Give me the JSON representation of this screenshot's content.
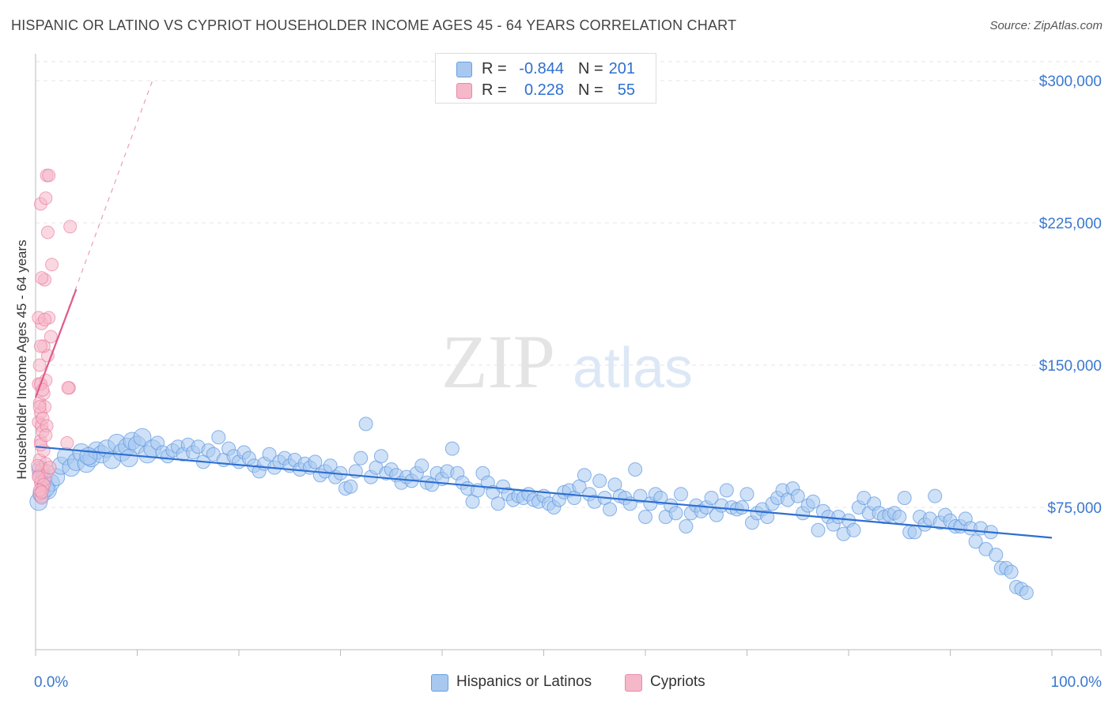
{
  "header": {
    "title": "HISPANIC OR LATINO VS CYPRIOT HOUSEHOLDER INCOME AGES 45 - 64 YEARS CORRELATION CHART",
    "source": "Source: ZipAtlas.com"
  },
  "watermark": {
    "zip": "ZIP",
    "atlas": "atlas"
  },
  "legend": {
    "rows": [
      {
        "r_label": "R =",
        "r_value": "-0.844",
        "n_label": "N =",
        "n_value": "201",
        "color": "#a8c8f0"
      },
      {
        "r_label": "R =",
        "r_value": "0.228",
        "n_label": "N =",
        "n_value": "55",
        "color": "#f5b8c8"
      }
    ]
  },
  "bottom_legend": {
    "series1": "Hispanics or Latinos",
    "series2": "Cypriots"
  },
  "chart_data": {
    "type": "scatter",
    "title": "HISPANIC OR LATINO VS CYPRIOT HOUSEHOLDER INCOME AGES 45 - 64 YEARS CORRELATION CHART",
    "xlabel": "",
    "ylabel": "Householder Income Ages 45 - 64 years",
    "xlim": [
      0,
      100
    ],
    "ylim": [
      0,
      310000
    ],
    "x_tick_labels": [
      "0.0%",
      "100.0%"
    ],
    "y_tick_labels": [
      "$75,000",
      "$150,000",
      "$225,000",
      "$300,000"
    ],
    "y_ticks": [
      75000,
      150000,
      225000,
      300000
    ],
    "grid": true,
    "colors": {
      "series1": "#5b95e0",
      "series1_fill": "#a8c8f0",
      "series2": "#e8729a",
      "series2_fill": "#f5b8c8",
      "trend1": "#2e6fd1",
      "trend2": "#e05b8a",
      "axis_text": "#3a78d0"
    },
    "series": [
      {
        "name": "Hispanics or Latinos",
        "trend": {
          "x": [
            0,
            100
          ],
          "y": [
            107000,
            59000
          ]
        },
        "points": [
          [
            0.3,
            78000
          ],
          [
            0.6,
            82000
          ],
          [
            0.8,
            90000
          ],
          [
            1.2,
            84000
          ],
          [
            1.5,
            88000
          ],
          [
            2.0,
            91000
          ],
          [
            2.5,
            97000
          ],
          [
            3.0,
            102000
          ],
          [
            3.5,
            96000
          ],
          [
            4.0,
            99000
          ],
          [
            4.5,
            104000
          ],
          [
            5.0,
            98000
          ],
          [
            5.5,
            101000
          ],
          [
            6.0,
            105000
          ],
          [
            6.5,
            103000
          ],
          [
            7.0,
            106000
          ],
          [
            7.5,
            100000
          ],
          [
            8.0,
            109000
          ],
          [
            8.5,
            104000
          ],
          [
            9.0,
            107000
          ],
          [
            9.5,
            110000
          ],
          [
            10.0,
            108000
          ],
          [
            10.5,
            112000
          ],
          [
            11.0,
            103000
          ],
          [
            11.5,
            106000
          ],
          [
            12.0,
            109000
          ],
          [
            12.5,
            104000
          ],
          [
            13.0,
            102000
          ],
          [
            13.5,
            105000
          ],
          [
            14.0,
            107000
          ],
          [
            14.5,
            103000
          ],
          [
            15.0,
            108000
          ],
          [
            15.5,
            104000
          ],
          [
            16.0,
            107000
          ],
          [
            16.5,
            99000
          ],
          [
            17.0,
            105000
          ],
          [
            17.5,
            103000
          ],
          [
            18.0,
            112000
          ],
          [
            18.5,
            100000
          ],
          [
            19.0,
            106000
          ],
          [
            19.5,
            102000
          ],
          [
            20.0,
            99000
          ],
          [
            20.5,
            104000
          ],
          [
            21.0,
            101000
          ],
          [
            21.5,
            97000
          ],
          [
            22.0,
            94000
          ],
          [
            22.5,
            98000
          ],
          [
            23.0,
            103000
          ],
          [
            23.5,
            96000
          ],
          [
            24.0,
            99000
          ],
          [
            24.5,
            101000
          ],
          [
            25.0,
            97000
          ],
          [
            25.5,
            100000
          ],
          [
            26.0,
            95000
          ],
          [
            26.5,
            98000
          ],
          [
            27.0,
            96000
          ],
          [
            27.5,
            99000
          ],
          [
            28.0,
            92000
          ],
          [
            28.5,
            94000
          ],
          [
            29.0,
            97000
          ],
          [
            29.5,
            91000
          ],
          [
            30.0,
            93000
          ],
          [
            30.5,
            85000
          ],
          [
            31.0,
            86000
          ],
          [
            31.5,
            94000
          ],
          [
            32.0,
            101000
          ],
          [
            32.5,
            119000
          ],
          [
            33.0,
            91000
          ],
          [
            33.5,
            96000
          ],
          [
            34.0,
            102000
          ],
          [
            34.5,
            93000
          ],
          [
            35.0,
            95000
          ],
          [
            35.5,
            92000
          ],
          [
            36.0,
            88000
          ],
          [
            36.5,
            91000
          ],
          [
            37.0,
            89000
          ],
          [
            37.5,
            93000
          ],
          [
            38.0,
            97000
          ],
          [
            38.5,
            88000
          ],
          [
            39.0,
            87000
          ],
          [
            39.5,
            93000
          ],
          [
            40.0,
            90000
          ],
          [
            40.5,
            94000
          ],
          [
            41.0,
            106000
          ],
          [
            41.5,
            93000
          ],
          [
            42.0,
            88000
          ],
          [
            42.5,
            85000
          ],
          [
            43.0,
            78000
          ],
          [
            43.5,
            84000
          ],
          [
            44.0,
            93000
          ],
          [
            44.5,
            88000
          ],
          [
            45.0,
            83000
          ],
          [
            45.5,
            77000
          ],
          [
            46.0,
            86000
          ],
          [
            46.5,
            82000
          ],
          [
            47.0,
            79000
          ],
          [
            47.5,
            81000
          ],
          [
            48.0,
            80000
          ],
          [
            48.5,
            82000
          ],
          [
            49.0,
            79000
          ],
          [
            49.5,
            78000
          ],
          [
            50.0,
            81000
          ],
          [
            50.5,
            77000
          ],
          [
            51.0,
            75000
          ],
          [
            51.5,
            79000
          ],
          [
            52.0,
            83000
          ],
          [
            52.5,
            84000
          ],
          [
            53.0,
            80000
          ],
          [
            53.5,
            86000
          ],
          [
            54.0,
            92000
          ],
          [
            54.5,
            82000
          ],
          [
            55.0,
            78000
          ],
          [
            55.5,
            89000
          ],
          [
            56.0,
            80000
          ],
          [
            56.5,
            74000
          ],
          [
            57.0,
            87000
          ],
          [
            57.5,
            81000
          ],
          [
            58.0,
            80000
          ],
          [
            58.5,
            77000
          ],
          [
            59.0,
            95000
          ],
          [
            59.5,
            81000
          ],
          [
            60.0,
            70000
          ],
          [
            60.5,
            77000
          ],
          [
            61.0,
            82000
          ],
          [
            61.5,
            80000
          ],
          [
            62.0,
            70000
          ],
          [
            62.5,
            76000
          ],
          [
            63.0,
            72000
          ],
          [
            63.5,
            82000
          ],
          [
            64.0,
            65000
          ],
          [
            64.5,
            72000
          ],
          [
            65.0,
            76000
          ],
          [
            65.5,
            73000
          ],
          [
            66.0,
            75000
          ],
          [
            66.5,
            80000
          ],
          [
            67.0,
            71000
          ],
          [
            67.5,
            76000
          ],
          [
            68.0,
            84000
          ],
          [
            68.5,
            75000
          ],
          [
            69.0,
            74000
          ],
          [
            69.5,
            75000
          ],
          [
            70.0,
            82000
          ],
          [
            70.5,
            67000
          ],
          [
            71.0,
            72000
          ],
          [
            71.5,
            74000
          ],
          [
            72.0,
            70000
          ],
          [
            72.5,
            77000
          ],
          [
            73.0,
            80000
          ],
          [
            73.5,
            84000
          ],
          [
            74.0,
            79000
          ],
          [
            74.5,
            85000
          ],
          [
            75.0,
            81000
          ],
          [
            75.5,
            72000
          ],
          [
            76.0,
            76000
          ],
          [
            76.5,
            78000
          ],
          [
            77.0,
            63000
          ],
          [
            77.5,
            73000
          ],
          [
            78.0,
            70000
          ],
          [
            78.5,
            66000
          ],
          [
            79.0,
            70000
          ],
          [
            79.5,
            61000
          ],
          [
            80.0,
            68000
          ],
          [
            80.5,
            63000
          ],
          [
            81.0,
            75000
          ],
          [
            81.5,
            80000
          ],
          [
            82.0,
            72000
          ],
          [
            82.5,
            77000
          ],
          [
            83.0,
            72000
          ],
          [
            83.5,
            70000
          ],
          [
            84.0,
            71000
          ],
          [
            84.5,
            72000
          ],
          [
            85.0,
            70000
          ],
          [
            85.5,
            80000
          ],
          [
            86.0,
            62000
          ],
          [
            86.5,
            62000
          ],
          [
            87.0,
            70000
          ],
          [
            87.5,
            66000
          ],
          [
            88.0,
            69000
          ],
          [
            88.5,
            81000
          ],
          [
            89.0,
            67000
          ],
          [
            89.5,
            71000
          ],
          [
            90.0,
            68000
          ],
          [
            90.5,
            65000
          ],
          [
            91.0,
            65000
          ],
          [
            91.5,
            69000
          ],
          [
            92.0,
            64000
          ],
          [
            92.5,
            57000
          ],
          [
            93.0,
            64000
          ],
          [
            93.5,
            53000
          ],
          [
            94.0,
            62000
          ],
          [
            94.5,
            50000
          ],
          [
            95.0,
            43000
          ],
          [
            95.5,
            43000
          ],
          [
            96.0,
            41000
          ],
          [
            96.5,
            33000
          ],
          [
            97.0,
            32000
          ],
          [
            97.5,
            30000
          ],
          [
            0.5,
            95000
          ],
          [
            1.0,
            85000
          ],
          [
            5.2,
            102000
          ],
          [
            9.2,
            101000
          ]
        ]
      },
      {
        "name": "Cypriots",
        "trend": {
          "x": [
            0,
            4.0
          ],
          "y": [
            133000,
            190000
          ]
        },
        "trend_ext": {
          "x": [
            0,
            11.5
          ],
          "y": [
            133000,
            300000
          ]
        },
        "points": [
          [
            0.3,
            120000
          ],
          [
            0.5,
            125000
          ],
          [
            0.4,
            130000
          ],
          [
            0.6,
            118000
          ],
          [
            0.3,
            140000
          ],
          [
            0.8,
            135000
          ],
          [
            0.5,
            110000
          ],
          [
            0.7,
            115000
          ],
          [
            0.4,
            100000
          ],
          [
            0.6,
            95000
          ],
          [
            0.3,
            92000
          ],
          [
            0.5,
            88000
          ],
          [
            0.7,
            85000
          ],
          [
            0.9,
            90000
          ],
          [
            0.4,
            82000
          ],
          [
            0.6,
            80000
          ],
          [
            1.0,
            98000
          ],
          [
            1.2,
            94000
          ],
          [
            0.8,
            105000
          ],
          [
            0.5,
            108000
          ],
          [
            1.0,
            142000
          ],
          [
            1.2,
            155000
          ],
          [
            0.8,
            160000
          ],
          [
            1.5,
            165000
          ],
          [
            0.6,
            172000
          ],
          [
            1.3,
            175000
          ],
          [
            0.9,
            195000
          ],
          [
            0.5,
            235000
          ],
          [
            1.0,
            238000
          ],
          [
            1.1,
            250000
          ],
          [
            1.3,
            250000
          ],
          [
            1.2,
            220000
          ],
          [
            3.4,
            223000
          ],
          [
            1.6,
            203000
          ],
          [
            3.3,
            138000
          ],
          [
            3.2,
            138000
          ],
          [
            3.1,
            109000
          ],
          [
            0.4,
            150000
          ],
          [
            0.5,
            140000
          ],
          [
            0.9,
            128000
          ],
          [
            0.7,
            122000
          ],
          [
            1.1,
            118000
          ],
          [
            0.2,
            97000
          ],
          [
            0.3,
            91000
          ],
          [
            0.8,
            87000
          ],
          [
            0.4,
            84000
          ],
          [
            0.6,
            83000
          ],
          [
            1.4,
            96000
          ],
          [
            0.5,
            160000
          ],
          [
            0.3,
            175000
          ],
          [
            0.6,
            196000
          ],
          [
            0.9,
            174000
          ],
          [
            0.4,
            128000
          ],
          [
            1.0,
            113000
          ],
          [
            0.7,
            137000
          ]
        ]
      }
    ]
  }
}
